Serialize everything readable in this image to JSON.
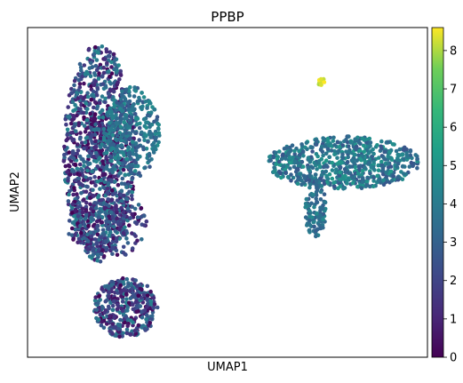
{
  "chart_data": {
    "type": "scatter",
    "title": "PPBP",
    "xlabel": "UMAP1",
    "ylabel": "UMAP2",
    "xlim": [
      0,
      100
    ],
    "ylim": [
      0,
      100
    ],
    "xticks": [],
    "yticks": [],
    "grid": false,
    "legend": "none",
    "colormap": "viridis",
    "colorbar": {
      "placement": "right",
      "range": [
        0,
        8.6
      ],
      "ticks": [
        "0",
        "1",
        "2",
        "3",
        "4",
        "5",
        "6",
        "7",
        "8"
      ]
    },
    "clusters": [
      {
        "cx": 18.5,
        "cy": 67,
        "rx": 4.5,
        "ry": 7,
        "n": 90,
        "vmin": 0,
        "vmax": 0.4
      },
      {
        "cx": 18,
        "cy": 62,
        "rx": 9,
        "ry": 33,
        "n": 1100,
        "vmin": 0,
        "vmax": 4.5
      },
      {
        "cx": 20,
        "cy": 40,
        "rx": 10,
        "ry": 10,
        "n": 220,
        "vmin": 0,
        "vmax": 3.5
      },
      {
        "cx": 26,
        "cy": 68,
        "rx": 7,
        "ry": 14,
        "n": 320,
        "vmin": 2.5,
        "vmax": 4.8
      },
      {
        "cx": 24.5,
        "cy": 15,
        "rx": 8,
        "ry": 9,
        "n": 380,
        "vmin": 0,
        "vmax": 4.3
      },
      {
        "cx": 79,
        "cy": 59,
        "rx": 19,
        "ry": 8,
        "n": 680,
        "vmin": 2.5,
        "vmax": 5.2
      },
      {
        "cx": 72,
        "cy": 45,
        "rx": 2.6,
        "ry": 9,
        "n": 110,
        "vmin": 2.8,
        "vmax": 4.6
      },
      {
        "cx": 73.5,
        "cy": 83.5,
        "rx": 0.9,
        "ry": 1.1,
        "n": 14,
        "vmin": 8,
        "vmax": 8.6
      }
    ]
  }
}
